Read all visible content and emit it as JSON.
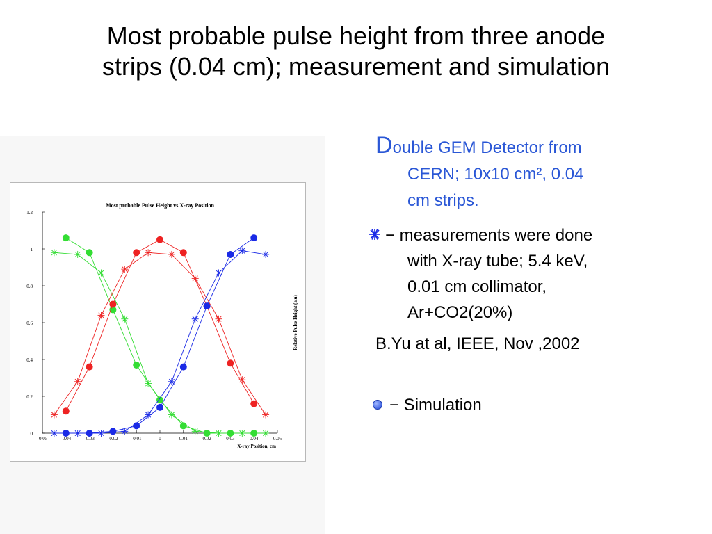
{
  "slide": {
    "title_line1": "Most probable pulse height from three anode",
    "title_line2": "strips (0.04 cm); measurement and simulation"
  },
  "notes": {
    "detector_cap": "D",
    "detector_line1_rest": "ouble GEM Detector from",
    "detector_line2": "CERN; 10x10 cm², 0.04",
    "detector_line3": "cm strips.",
    "measure_line1": "−  measurements were done",
    "measure_line2": "with X-ray tube; 5.4 keV,",
    "measure_line3": "0.01 cm collimator,",
    "measure_line4": "Ar+CO2(20%)",
    "reference": "B.Yu at al, IEEE, Nov ,2002",
    "simulation": "− Simulation",
    "detector_color": "#2a57d6",
    "star_bullet_icon": "star-bullet-icon",
    "dot_bullet_icon": "circle-bullet-icon"
  },
  "chart_data": {
    "type": "line",
    "title": "Most probable Pulse Height vs X-ray Position",
    "xlabel": "X-ray Position, cm",
    "ylabel": "Relative Pulse Height (a.u)",
    "xlim": [
      -0.05,
      0.05
    ],
    "ylim": [
      0,
      1.2
    ],
    "xticks": [
      "-0.05",
      "-0.04",
      "-0.03",
      "-0.02",
      "-0.01",
      "0",
      "0.01",
      "0.02",
      "0.03",
      "0.04",
      "0.05"
    ],
    "yticks": [
      "0",
      "0.2",
      "0.4",
      "0.6",
      "0.8",
      "1",
      "1.2"
    ],
    "grid": false,
    "marker_legend": {
      "star": "measurement",
      "dot": "simulation"
    },
    "series": [
      {
        "color": "#33dd33",
        "measurement": {
          "x": [
            -0.045,
            -0.035,
            -0.025,
            -0.015,
            -0.005,
            0.005,
            0.015,
            0.025,
            0.035,
            0.045
          ],
          "y": [
            0.98,
            0.97,
            0.87,
            0.62,
            0.27,
            0.1,
            0.01,
            0.0,
            0.0,
            0.0
          ]
        },
        "simulation": {
          "x": [
            -0.04,
            -0.03,
            -0.02,
            -0.01,
            0.0,
            0.01,
            0.02,
            0.03,
            0.04
          ],
          "y": [
            1.06,
            0.98,
            0.67,
            0.37,
            0.18,
            0.04,
            0.0,
            0.0,
            0.0
          ]
        }
      },
      {
        "color": "#ee2222",
        "measurement": {
          "x": [
            -0.045,
            -0.035,
            -0.025,
            -0.015,
            -0.005,
            0.005,
            0.015,
            0.025,
            0.035,
            0.045
          ],
          "y": [
            0.1,
            0.28,
            0.64,
            0.89,
            0.98,
            0.97,
            0.84,
            0.62,
            0.29,
            0.1
          ]
        },
        "simulation": {
          "x": [
            -0.04,
            -0.03,
            -0.02,
            -0.01,
            0.0,
            0.01,
            0.02,
            0.03,
            0.04
          ],
          "y": [
            0.12,
            0.36,
            0.7,
            0.98,
            1.05,
            0.98,
            0.69,
            0.38,
            0.16
          ]
        }
      },
      {
        "color": "#1a2ae6",
        "measurement": {
          "x": [
            -0.045,
            -0.035,
            -0.025,
            -0.015,
            -0.005,
            0.005,
            0.015,
            0.025,
            0.035,
            0.045
          ],
          "y": [
            0.0,
            0.0,
            0.0,
            0.01,
            0.1,
            0.28,
            0.62,
            0.87,
            0.99,
            0.97
          ]
        },
        "simulation": {
          "x": [
            -0.04,
            -0.03,
            -0.02,
            -0.01,
            0.0,
            0.01,
            0.02,
            0.03,
            0.04
          ],
          "y": [
            0.0,
            0.0,
            0.01,
            0.04,
            0.14,
            0.36,
            0.69,
            0.97,
            1.06
          ]
        }
      }
    ]
  }
}
